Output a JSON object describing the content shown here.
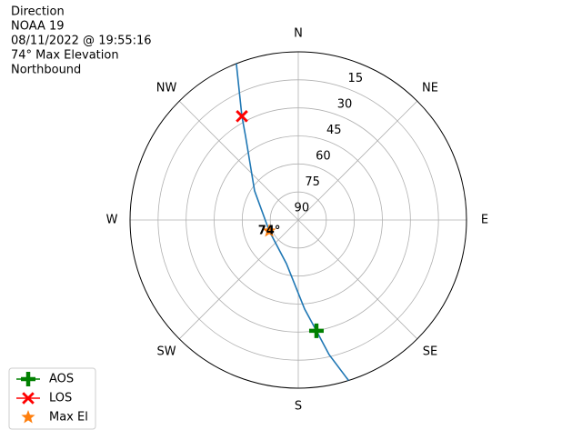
{
  "chart_data": {
    "type": "polar",
    "title_lines": [
      "Direction",
      "NOAA 19",
      "08/11/2022 @ 19:55:16",
      "74° Max Elevation",
      "Northbound"
    ],
    "rlim": [
      90,
      0
    ],
    "rticks": [
      15,
      30,
      45,
      60,
      75,
      90
    ],
    "thetaticks": [
      {
        "value": 0,
        "label": "N"
      },
      {
        "value": 45,
        "label": "NE"
      },
      {
        "value": 90,
        "label": "E"
      },
      {
        "value": 135,
        "label": "SE"
      },
      {
        "value": 180,
        "label": "S"
      },
      {
        "value": 225,
        "label": "SW"
      },
      {
        "value": 270,
        "label": "W"
      },
      {
        "value": 315,
        "label": "NW"
      }
    ],
    "grid": true,
    "legend": "lower left",
    "track": {
      "color": "#1f77b4",
      "x": [
        338.4,
        331.5,
        327.8,
        303.7,
        249.4,
        195.2,
        175.9,
        170.7,
        167.1,
        162.6
      ],
      "values": [
        0,
        26.8,
        37.1,
        61.9,
        73.4,
        65.8,
        42.2,
        29.9,
        16.1,
        0
      ]
    },
    "series": [
      {
        "name": "AOS",
        "color": "#008000",
        "marker": "plus",
        "x": [
          170.7
        ],
        "values": [
          29.9
        ]
      },
      {
        "name": "LOS",
        "color": "#ff0000",
        "marker": "x",
        "x": [
          331.5
        ],
        "values": [
          26.8
        ]
      },
      {
        "name": "Max El",
        "color": "#ff7f0e",
        "marker": "star",
        "x": [
          249.4
        ],
        "values": [
          73.4
        ]
      }
    ],
    "annotation": {
      "text": "74°"
    }
  }
}
